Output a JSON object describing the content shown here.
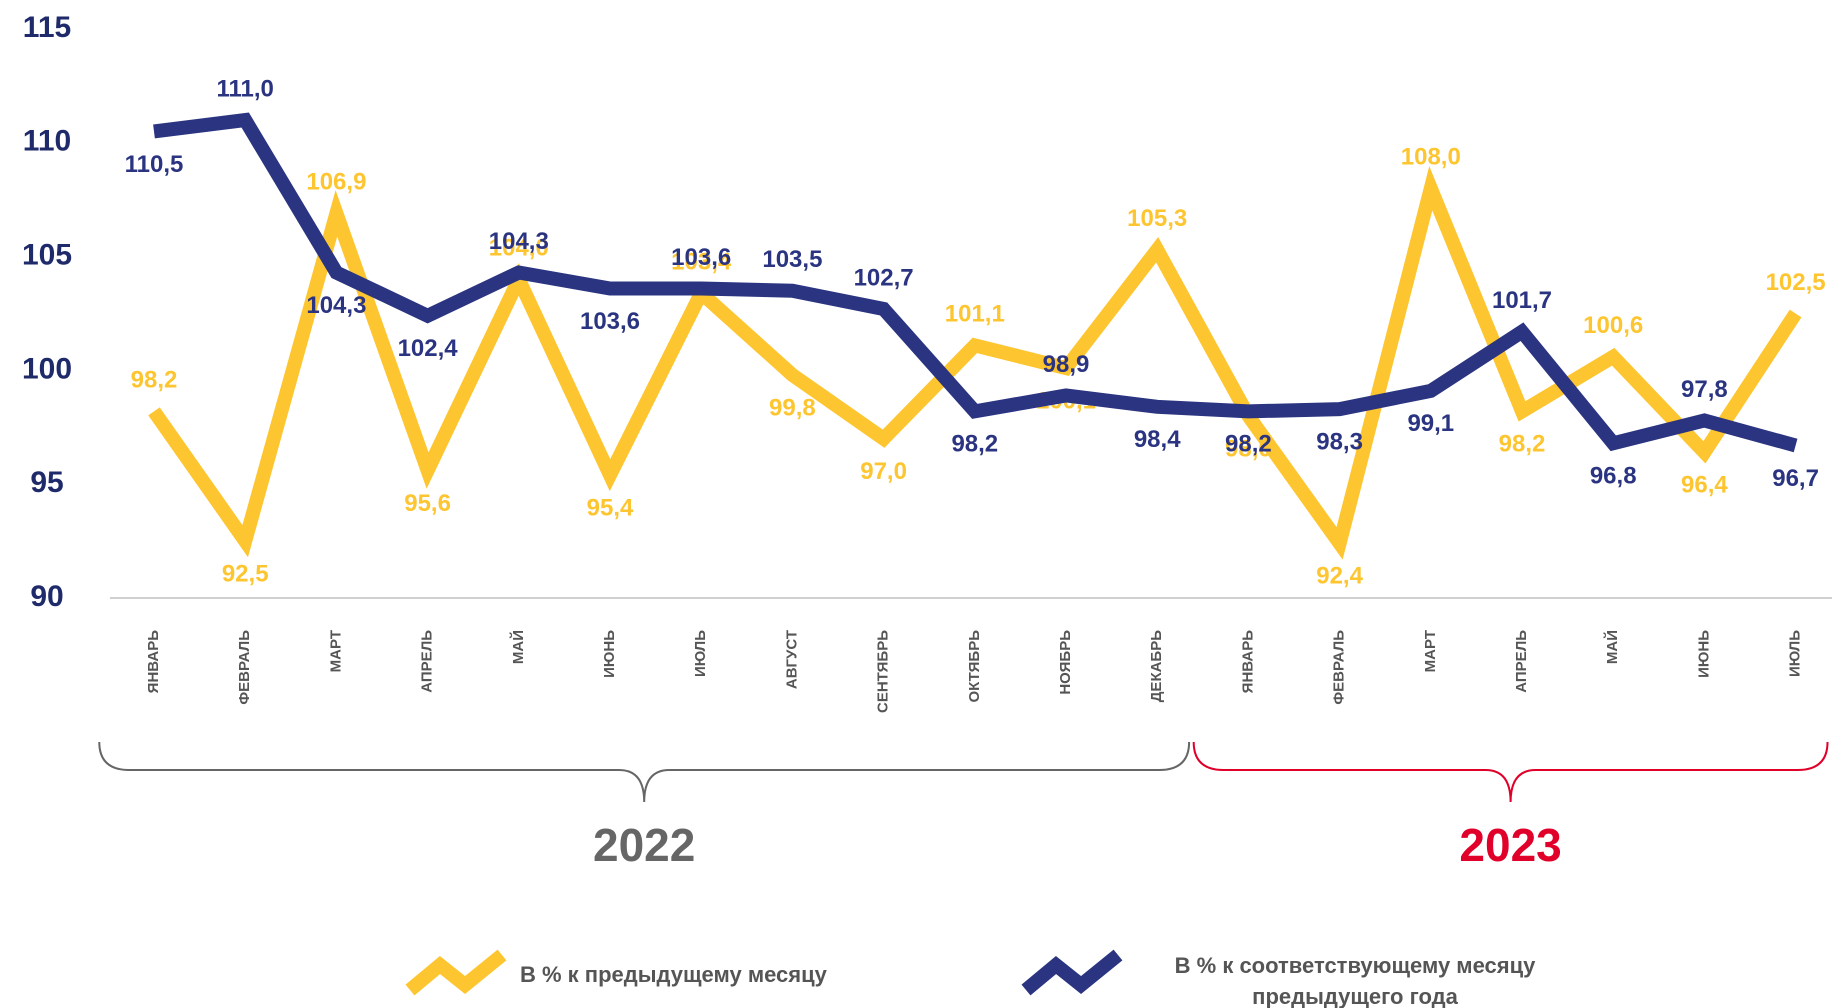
{
  "chart_data": {
    "type": "line",
    "categories": [
      "ЯНВАРЬ",
      "ФЕВРАЛЬ",
      "МАРТ",
      "АПРЕЛЬ",
      "МАЙ",
      "ИЮНЬ",
      "ИЮЛЬ",
      "АВГУСТ",
      "СЕНТЯБРЬ",
      "ОКТЯБРЬ",
      "НОЯБРЬ",
      "ДЕКАБРЬ",
      "ЯНВАРЬ",
      "ФЕВРАЛЬ",
      "МАРТ",
      "АПРЕЛЬ",
      "МАЙ",
      "ИЮНЬ",
      "ИЮЛЬ"
    ],
    "series": [
      {
        "name": "В % к предыдущему месяцу",
        "color": "#fdc52f",
        "values": [
          98.2,
          92.5,
          106.9,
          95.6,
          104.0,
          95.4,
          103.4,
          99.8,
          97.0,
          101.1,
          100.1,
          105.3,
          98.0,
          92.4,
          108.0,
          98.2,
          100.6,
          96.4,
          102.5
        ],
        "value_labels": [
          "98,2",
          "92,5",
          "106,9",
          "95,6",
          "104,0",
          "95,4",
          "103,4",
          "99,8",
          "97,0",
          "101,1",
          "100,1",
          "105,3",
          "98,0",
          "92,4",
          "108,0",
          "98,2",
          "100,6",
          "96,4",
          "102,5"
        ]
      },
      {
        "name": "В % к соответствующему месяцу предыдущего года",
        "color": "#2b3480",
        "values": [
          110.5,
          111.0,
          104.3,
          102.4,
          104.3,
          103.6,
          103.6,
          103.5,
          102.7,
          98.2,
          98.9,
          98.4,
          98.2,
          98.3,
          99.1,
          101.7,
          96.8,
          97.8,
          96.7
        ],
        "value_labels": [
          "110,5",
          "111,0",
          "104,3",
          "102,4",
          "104,3",
          "103,6",
          "103,6",
          "103,5",
          "102,7",
          "98,2",
          "98,9",
          "98,4",
          "98,2",
          "98,3",
          "99,1",
          "101,7",
          "96,8",
          "97,8",
          "96,7"
        ]
      }
    ],
    "x_groups": [
      {
        "label": "2022",
        "color": "#666666",
        "span": [
          0,
          11
        ]
      },
      {
        "label": "2023",
        "color": "#e0002a",
        "span": [
          12,
          18
        ]
      }
    ],
    "ylim": [
      90,
      115
    ],
    "yticks": [
      90,
      95,
      100,
      105,
      110,
      115
    ],
    "grid": false
  }
}
